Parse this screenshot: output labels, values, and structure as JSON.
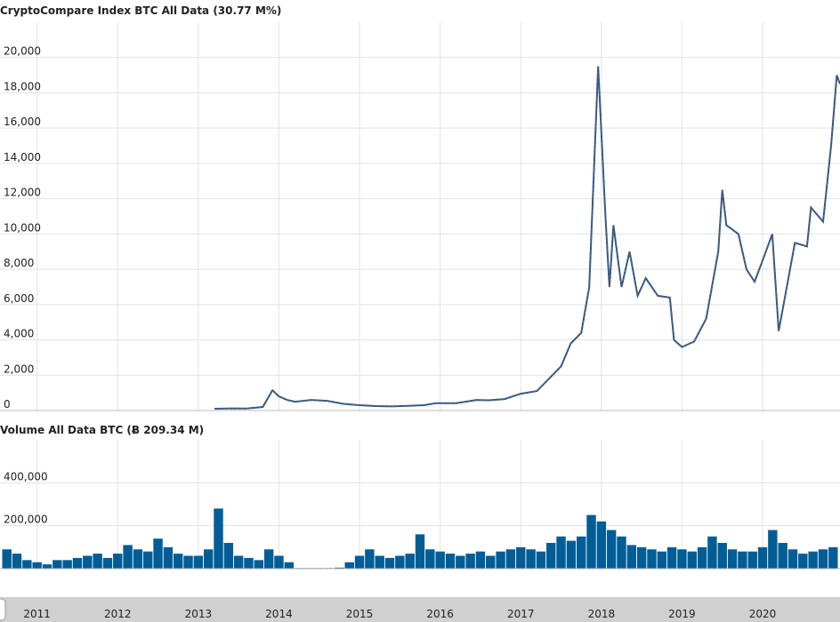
{
  "chart_data": [
    {
      "type": "line",
      "title": "CryptoCompare Index BTC All Data (30.77 M%)",
      "color": "#1c5e8e",
      "xlim": [
        2010.54,
        2020.96
      ],
      "ylim": [
        0,
        22000
      ],
      "yticks": [
        0,
        {
          "value": 2000,
          "label": "2,000"
        },
        {
          "value": 4000,
          "label": "4,000"
        },
        {
          "value": 6000,
          "label": "6,000"
        },
        {
          "value": 8000,
          "label": "8,000"
        },
        {
          "value": 10000,
          "label": "10,000"
        },
        {
          "value": 12000,
          "label": "12,000"
        },
        {
          "value": 14000,
          "label": "14,000"
        },
        {
          "value": 16000,
          "label": "16,000"
        },
        {
          "value": 18000,
          "label": "18,000"
        },
        {
          "value": 20000,
          "label": "20,000"
        }
      ],
      "x": [
        2013.2,
        2013.4,
        2013.6,
        2013.8,
        2013.92,
        2014.0,
        2014.1,
        2014.2,
        2014.4,
        2014.6,
        2014.8,
        2015.0,
        2015.2,
        2015.4,
        2015.6,
        2015.8,
        2015.95,
        2016.2,
        2016.45,
        2016.6,
        2016.8,
        2017.0,
        2017.2,
        2017.35,
        2017.5,
        2017.62,
        2017.75,
        2017.85,
        2017.96,
        2018.05,
        2018.1,
        2018.15,
        2018.25,
        2018.35,
        2018.45,
        2018.55,
        2018.7,
        2018.85,
        2018.9,
        2019.0,
        2019.15,
        2019.3,
        2019.45,
        2019.5,
        2019.55,
        2019.7,
        2019.8,
        2019.9,
        2020.0,
        2020.12,
        2020.2,
        2020.3,
        2020.4,
        2020.55,
        2020.6,
        2020.75,
        2020.85,
        2020.92,
        2020.96
      ],
      "values": [
        100,
        120,
        110,
        200,
        1150,
        800,
        600,
        500,
        600,
        550,
        380,
        300,
        250,
        230,
        260,
        300,
        420,
        420,
        600,
        580,
        650,
        950,
        1100,
        1800,
        2500,
        3800,
        4400,
        7000,
        19500,
        11000,
        7000,
        10500,
        7000,
        9000,
        6500,
        7500,
        6500,
        6400,
        4000,
        3600,
        3900,
        5200,
        9000,
        12500,
        10500,
        10000,
        8000,
        7300,
        8500,
        10000,
        4500,
        7000,
        9500,
        9300,
        11500,
        10700,
        15000,
        19000,
        18500
      ]
    },
    {
      "type": "bar",
      "title": "Volume All Data BTC (Ƀ 209.34 M)",
      "color": "#005d96",
      "xlim": [
        2010.54,
        2020.96
      ],
      "ylim": [
        0,
        600000
      ],
      "yticks": [
        0,
        {
          "value": 200000,
          "label": "200,000"
        },
        {
          "value": 400000,
          "label": "400,000"
        }
      ],
      "xticks": [
        2011,
        2012,
        2013,
        2014,
        2015,
        2016,
        2017,
        2018,
        2019,
        2020
      ],
      "x": [
        2010.625,
        2010.75,
        2010.875,
        2011.0,
        2011.125,
        2011.25,
        2011.375,
        2011.5,
        2011.625,
        2011.75,
        2011.875,
        2012.0,
        2012.125,
        2012.25,
        2012.375,
        2012.5,
        2012.625,
        2012.75,
        2012.875,
        2013.0,
        2013.125,
        2013.25,
        2013.375,
        2013.5,
        2013.625,
        2013.75,
        2013.875,
        2014.0,
        2014.125,
        2014.25,
        2014.375,
        2014.5,
        2014.625,
        2014.75,
        2014.875,
        2015.0,
        2015.125,
        2015.25,
        2015.375,
        2015.5,
        2015.625,
        2015.75,
        2015.875,
        2016.0,
        2016.125,
        2016.25,
        2016.375,
        2016.5,
        2016.625,
        2016.75,
        2016.875,
        2017.0,
        2017.125,
        2017.25,
        2017.375,
        2017.5,
        2017.625,
        2017.75,
        2017.875,
        2018.0,
        2018.125,
        2018.25,
        2018.375,
        2018.5,
        2018.625,
        2018.75,
        2018.875,
        2019.0,
        2019.125,
        2019.25,
        2019.375,
        2019.5,
        2019.625,
        2019.75,
        2019.875,
        2020.0,
        2020.125,
        2020.25,
        2020.375,
        2020.5,
        2020.625,
        2020.75,
        2020.875
      ],
      "values": [
        90000,
        70000,
        40000,
        30000,
        20000,
        40000,
        40000,
        50000,
        60000,
        70000,
        50000,
        70000,
        110000,
        90000,
        80000,
        140000,
        100000,
        70000,
        60000,
        60000,
        90000,
        280000,
        120000,
        60000,
        50000,
        40000,
        90000,
        60000,
        30000,
        3000,
        3000,
        3000,
        3000,
        5000,
        30000,
        60000,
        90000,
        60000,
        50000,
        60000,
        70000,
        160000,
        90000,
        80000,
        70000,
        60000,
        70000,
        80000,
        60000,
        80000,
        90000,
        100000,
        90000,
        80000,
        120000,
        150000,
        130000,
        150000,
        250000,
        220000,
        180000,
        150000,
        110000,
        100000,
        90000,
        80000,
        100000,
        90000,
        80000,
        100000,
        150000,
        120000,
        90000,
        80000,
        80000,
        100000,
        180000,
        120000,
        90000,
        70000,
        80000,
        90000,
        100000
      ]
    }
  ]
}
